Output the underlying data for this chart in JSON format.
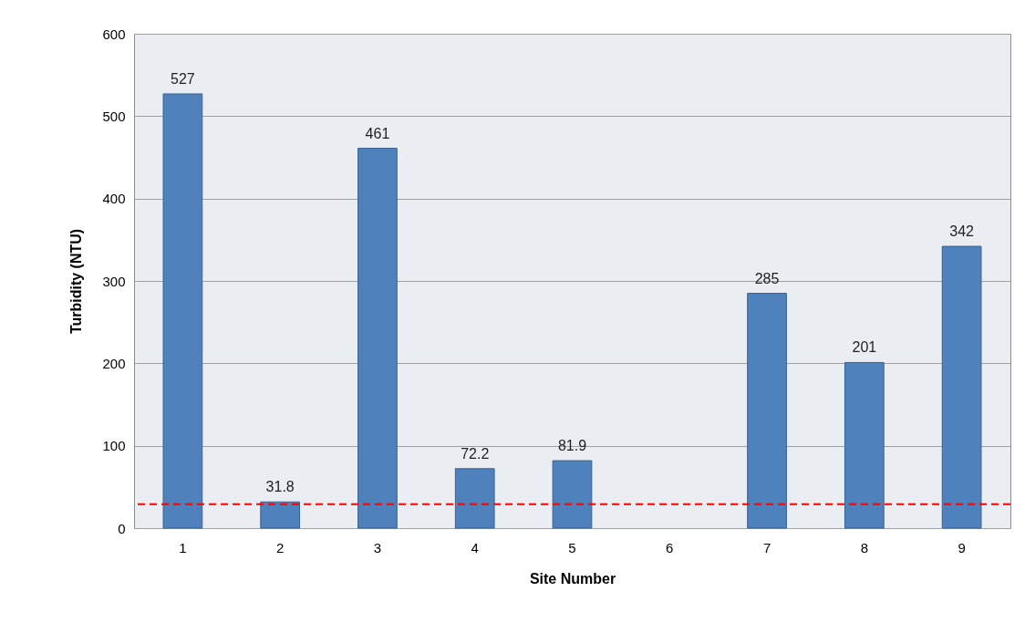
{
  "chart_data": {
    "type": "bar",
    "xlabel": "Site Number",
    "ylabel": "Turbidity (NTU)",
    "categories": [
      "1",
      "2",
      "3",
      "4",
      "5",
      "6",
      "7",
      "8",
      "9"
    ],
    "values": [
      527,
      31.8,
      461,
      72.2,
      81.9,
      null,
      285,
      201,
      342
    ],
    "color": "#4f81bd",
    "ylim": [
      0,
      600
    ],
    "yticks": [
      0,
      100,
      200,
      300,
      400,
      500,
      600
    ],
    "grid": "y",
    "data_labels": true,
    "ref_lines": [
      {
        "axis": "y",
        "value": 29,
        "color": "#ff0000",
        "line_style": "dashed"
      }
    ]
  }
}
